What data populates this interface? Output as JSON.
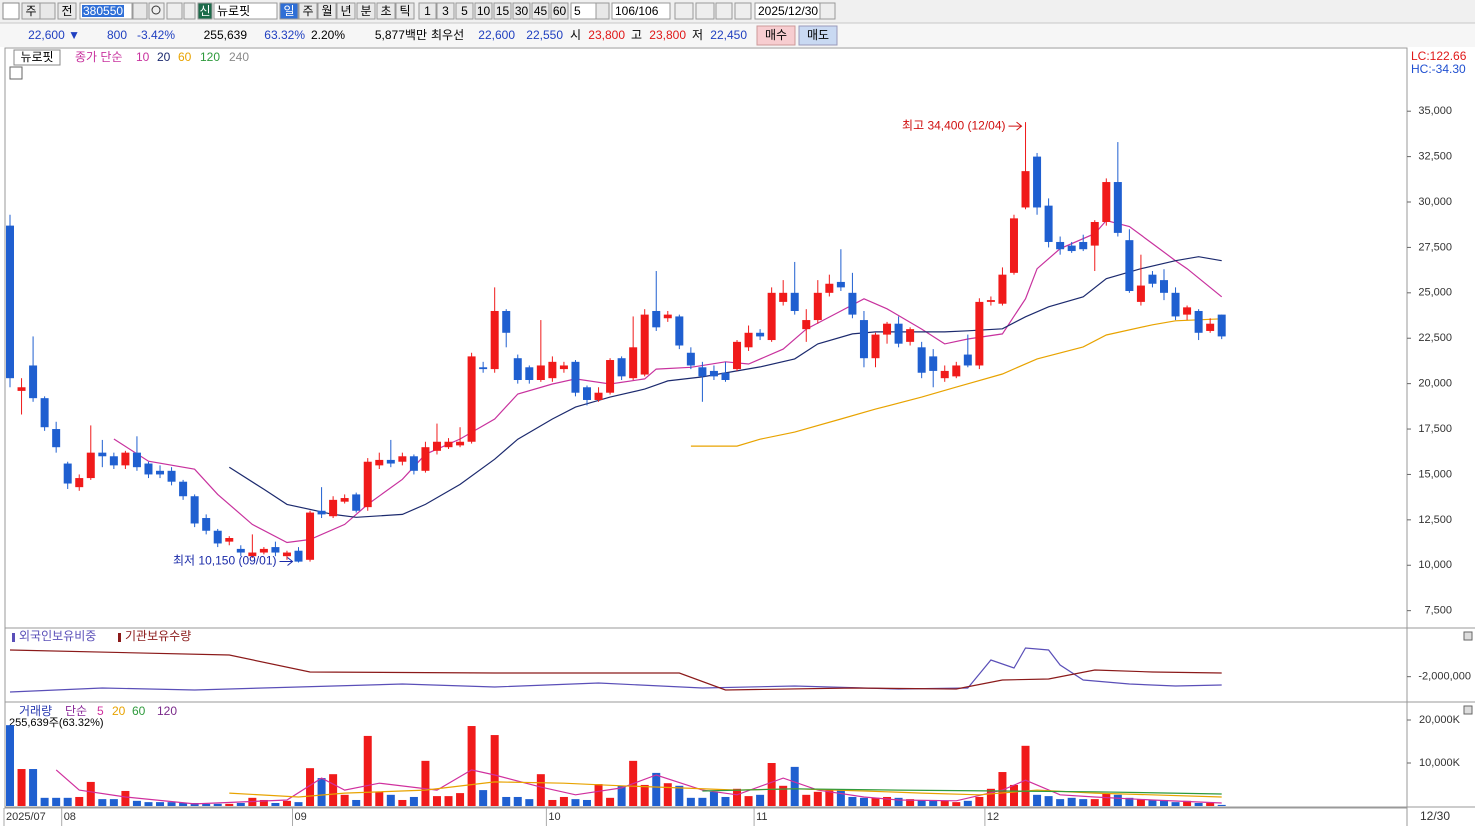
{
  "toolbar": {
    "market": "주",
    "prefix": "전",
    "code": "380550",
    "badge": "신",
    "name": "뉴로핏",
    "periods": [
      "일",
      "주",
      "월",
      "년",
      "분",
      "초",
      "틱"
    ],
    "intervals": [
      "1",
      "3",
      "5",
      "10",
      "15",
      "30",
      "45",
      "60"
    ],
    "interval_input": "5",
    "count": "106/106",
    "date": "2025/12/30"
  },
  "quote": {
    "price": "22,600 ▼",
    "change": "800",
    "change_rate": "-3.42%",
    "volume": "255,639",
    "volume_ratio": "63.32%",
    "turnover_rate": "2.20%",
    "amount": "5,877백만",
    "best_label": "최우선",
    "best_ask": "22,600",
    "best_bid": "22,550",
    "open_label": "시",
    "open": "23,800",
    "high_label": "고",
    "high": "23,800",
    "low_label": "저",
    "low": "22,450",
    "buy": "매수",
    "sell": "매도"
  },
  "chart_data": [
    {
      "type": "candlestick",
      "title": "뉴로핏",
      "ma_label": "종가 단순",
      "lc_label": "LC:122.66",
      "hc_label": "HC:-34.30",
      "high_label": "최고 34,400 (12/04)",
      "low_label": "최저 10,150 (09/01)",
      "up_color": "#f01a1a",
      "down_color": "#1f5fd0",
      "open": [
        28700,
        19600,
        21000,
        19200,
        17500,
        15600,
        14300,
        14800,
        16200,
        16000,
        15500,
        16200,
        15600,
        15200,
        15200,
        14600,
        13800,
        12600,
        11900,
        11300,
        10900,
        10500,
        10700,
        11000,
        10500,
        10800,
        10300,
        13000,
        12700,
        13500,
        13900,
        13200,
        15500,
        15800,
        15700,
        16000,
        15200,
        16300,
        16500,
        16600,
        16800,
        20900,
        20800,
        24000,
        21400,
        20900,
        20200,
        20300,
        20800,
        21200,
        19800,
        19100,
        19500,
        21400,
        20300,
        20500,
        24000,
        23600,
        23700,
        21700,
        20900,
        20700,
        20600,
        20800,
        22000,
        22800,
        22400,
        24500,
        25000,
        23000,
        23500,
        25000,
        25600,
        25000,
        23500,
        21400,
        22700,
        23300,
        22300,
        22000,
        21500,
        20300,
        20400,
        21600,
        21000,
        24500,
        24400,
        26100,
        29700,
        32500,
        29800,
        27800,
        27600,
        27800,
        27600,
        28900,
        31100,
        27900,
        24500,
        26000,
        25700,
        25000,
        23800,
        24000,
        22900,
        23800
      ],
      "high": [
        29300,
        20300,
        22600,
        19300,
        17900,
        15700,
        15000,
        17700,
        16900,
        16200,
        16300,
        17100,
        15700,
        15500,
        15400,
        14700,
        13900,
        12800,
        12000,
        11600,
        11100,
        11700,
        11000,
        11300,
        10800,
        11000,
        13000,
        14300,
        13800,
        13900,
        14000,
        15900,
        16200,
        16900,
        16200,
        16100,
        16800,
        17800,
        17000,
        17600,
        21700,
        21200,
        25300,
        24100,
        21600,
        21000,
        23500,
        21500,
        21200,
        21300,
        19900,
        19800,
        21400,
        21500,
        23700,
        24100,
        26200,
        24000,
        23800,
        22000,
        21200,
        21000,
        21200,
        22400,
        23200,
        23000,
        25300,
        25700,
        26700,
        24100,
        25700,
        26000,
        27400,
        26100,
        24000,
        22800,
        23400,
        23700,
        23100,
        22300,
        21900,
        21000,
        21200,
        22700,
        24700,
        24800,
        26400,
        29300,
        34400,
        32700,
        30200,
        28100,
        27800,
        28200,
        29000,
        31300,
        33300,
        28500,
        27100,
        26200,
        26300,
        25300,
        24300,
        24100,
        23600,
        23800
      ],
      "low": [
        19800,
        18300,
        19000,
        17400,
        16200,
        14200,
        14100,
        14700,
        15400,
        15300,
        15300,
        15200,
        14800,
        14800,
        14400,
        13600,
        12100,
        11700,
        11000,
        11100,
        10500,
        10400,
        10600,
        10500,
        10300,
        10150,
        10200,
        12600,
        12600,
        13400,
        12900,
        13000,
        15300,
        15400,
        15500,
        15000,
        15100,
        16100,
        16400,
        16500,
        16700,
        20600,
        20600,
        22000,
        20000,
        20000,
        20100,
        20100,
        20600,
        19300,
        18800,
        19000,
        19400,
        20200,
        20200,
        20400,
        22900,
        23400,
        21900,
        20800,
        19000,
        20200,
        20100,
        20700,
        21800,
        22400,
        22300,
        24300,
        23800,
        22300,
        23300,
        24800,
        25100,
        23600,
        20900,
        20900,
        22200,
        22000,
        22100,
        20300,
        19800,
        20100,
        20300,
        20900,
        20800,
        24300,
        24300,
        26000,
        29600,
        29300,
        27500,
        27100,
        27200,
        27300,
        26200,
        28700,
        28100,
        25000,
        24300,
        25300,
        24600,
        23500,
        23500,
        22400,
        22800,
        22450
      ],
      "close": [
        20300,
        19800,
        19200,
        17600,
        16500,
        14500,
        14800,
        16200,
        16000,
        15500,
        16200,
        15400,
        15000,
        15000,
        14600,
        13800,
        12300,
        11900,
        11200,
        11500,
        10700,
        10700,
        10900,
        10700,
        10700,
        10200,
        12900,
        12800,
        13600,
        13700,
        13000,
        15700,
        15800,
        15600,
        16000,
        15200,
        16500,
        16800,
        16800,
        16800,
        21500,
        20800,
        24000,
        22800,
        20200,
        20200,
        21000,
        21200,
        21000,
        19500,
        19100,
        19500,
        21300,
        20400,
        22000,
        23800,
        23100,
        23800,
        22100,
        21000,
        20400,
        20400,
        20200,
        22300,
        22800,
        22600,
        25000,
        25000,
        24000,
        23500,
        25000,
        25500,
        25300,
        23800,
        21400,
        22700,
        23300,
        22200,
        23000,
        20600,
        20700,
        20700,
        21000,
        21000,
        24500,
        24600,
        26000,
        29100,
        31700,
        29700,
        27800,
        27400,
        27300,
        27400,
        28900,
        31100,
        28300,
        25100,
        25400,
        25500,
        25000,
        23700,
        24200,
        22800,
        23300,
        22600
      ],
      "series": [
        {
          "name": "10",
          "color": "#c8329e",
          "x": [
            9,
            12,
            16,
            18,
            21,
            24,
            26,
            29,
            31,
            34,
            36,
            39,
            42,
            44,
            47,
            49,
            52,
            55,
            56,
            59,
            62,
            64,
            67,
            69,
            72,
            74,
            76,
            79,
            81,
            83,
            86,
            88,
            89,
            91,
            94,
            95,
            97,
            99,
            101,
            102,
            105
          ],
          "values": [
            16950,
            15730,
            15290,
            13900,
            12250,
            11250,
            11420,
            12250,
            13350,
            14730,
            16110,
            16950,
            18050,
            19430,
            19980,
            20260,
            19980,
            20260,
            20800,
            20900,
            21200,
            21080,
            21900,
            23000,
            24000,
            24670,
            24120,
            23000,
            22190,
            22460,
            22740,
            24670,
            26330,
            27430,
            28260,
            28980,
            28650,
            27710,
            26770,
            26330,
            24780
          ]
        },
        {
          "name": "20",
          "color": "#1c2a6e",
          "x": [
            19,
            22,
            24,
            28,
            30,
            34,
            36,
            39,
            42,
            44,
            47,
            49,
            52,
            55,
            57,
            60,
            62,
            65,
            68,
            70,
            73,
            75,
            78,
            81,
            83,
            86,
            88,
            90,
            93,
            95,
            98,
            101,
            103,
            105
          ],
          "values": [
            15400,
            14180,
            13350,
            12800,
            12640,
            12800,
            13350,
            14450,
            15840,
            16940,
            18050,
            18710,
            19260,
            19700,
            20150,
            20370,
            20590,
            20920,
            21360,
            22190,
            22740,
            22850,
            22850,
            22850,
            22910,
            23020,
            23680,
            24230,
            24780,
            25780,
            26330,
            26770,
            26990,
            26770
          ]
        },
        {
          "name": "60",
          "color": "#e8a300",
          "x": [
            59,
            63,
            65,
            68,
            72,
            75,
            79,
            82,
            86,
            89,
            93,
            95,
            99,
            101,
            105
          ],
          "values": [
            16560,
            16560,
            16940,
            17330,
            18050,
            18600,
            19260,
            19810,
            20530,
            21360,
            22020,
            22680,
            23240,
            23460,
            23570
          ]
        },
        {
          "name": "120",
          "color": "#2e9a3c",
          "x": [],
          "values": []
        },
        {
          "name": "240",
          "color": "#8a8a8a",
          "x": [],
          "values": []
        }
      ],
      "ylim": [
        6600,
        38480
      ],
      "yticks": [
        {
          "value": 7500,
          "label": "7,500"
        },
        {
          "value": 10000,
          "label": "10,000"
        },
        {
          "value": 12500,
          "label": "12,500"
        },
        {
          "value": 15000,
          "label": "15,000"
        },
        {
          "value": 17500,
          "label": "17,500"
        },
        {
          "value": 20000,
          "label": "20,000"
        },
        {
          "value": 22500,
          "label": "22,500"
        },
        {
          "value": 25000,
          "label": "25,000"
        },
        {
          "value": 27500,
          "label": "27,500"
        },
        {
          "value": 30000,
          "label": "30,000"
        },
        {
          "value": 32500,
          "label": "32,500"
        },
        {
          "value": 35000,
          "label": "35,000"
        }
      ],
      "grid": false
    },
    {
      "type": "line",
      "series": [
        {
          "name": "외국인보유비중",
          "color": "#5a4fb8",
          "x": [
            0,
            8,
            16,
            25,
            34,
            42,
            51,
            60,
            68,
            77,
            83,
            85,
            87,
            88,
            90,
            91,
            93,
            97,
            101,
            105
          ],
          "values": [
            -2986000,
            -2729000,
            -2857000,
            -2664000,
            -2471000,
            -2664000,
            -2407000,
            -2729000,
            -2600000,
            -2793000,
            -2729000,
            -929000,
            -1443000,
            -157000,
            -286000,
            -1250000,
            -2214000,
            -2471000,
            -2600000,
            -2536000
          ]
        },
        {
          "name": "기관보유수량",
          "color": "#8b1a1a",
          "x": [
            0,
            19,
            26,
            42,
            58,
            62,
            73,
            82,
            86,
            90,
            94,
            99,
            105
          ],
          "values": [
            -286000,
            -607000,
            -1700000,
            -1764000,
            -1764000,
            -2857000,
            -2729000,
            -2793000,
            -2214000,
            -2150000,
            -1571000,
            -1700000,
            -1764000
          ]
        }
      ],
      "ylim": [
        -3500000,
        1000000
      ],
      "yticks": [
        {
          "value": -2000000,
          "label": "-2,000,000"
        }
      ]
    },
    {
      "type": "bar",
      "title": "거래량",
      "ma_label": "단순",
      "last_label": "255,639주(63.32%)",
      "categories": [
        "2025/07",
        null,
        null,
        null,
        null,
        "08",
        null,
        null,
        null,
        null,
        null,
        null,
        null,
        null,
        null,
        null,
        null,
        null,
        null,
        null,
        null,
        null,
        null,
        null,
        null,
        "09",
        null,
        null,
        null,
        null,
        null,
        null,
        null,
        null,
        null,
        null,
        null,
        null,
        null,
        null,
        null,
        null,
        null,
        null,
        null,
        null,
        null,
        "10",
        null,
        null,
        null,
        null,
        null,
        null,
        null,
        null,
        null,
        null,
        null,
        null,
        null,
        null,
        null,
        null,
        null,
        "11",
        null,
        null,
        null,
        null,
        null,
        null,
        null,
        null,
        null,
        null,
        null,
        null,
        null,
        null,
        null,
        null,
        null,
        null,
        null,
        "12",
        null,
        null,
        null,
        null,
        null,
        null,
        null,
        null,
        null,
        null,
        null,
        null,
        null,
        null,
        null,
        null,
        null,
        null,
        null,
        null
      ],
      "end_label": "12/30",
      "values": [
        18800,
        8600,
        8600,
        1900,
        1900,
        1900,
        2100,
        5600,
        1600,
        1600,
        3500,
        1200,
        900,
        900,
        900,
        700,
        700,
        500,
        500,
        500,
        700,
        1900,
        1400,
        700,
        1200,
        900,
        8800,
        6500,
        7400,
        2600,
        1400,
        16300,
        3300,
        2600,
        1400,
        2100,
        10500,
        2300,
        2300,
        3000,
        18600,
        3700,
        16500,
        2100,
        2100,
        1600,
        7400,
        1400,
        2100,
        1600,
        1400,
        5100,
        1900,
        4700,
        10500,
        4900,
        7700,
        5300,
        4700,
        1900,
        1900,
        3300,
        2100,
        4000,
        2300,
        2600,
        10000,
        4700,
        9100,
        2600,
        3300,
        3700,
        3700,
        2100,
        1900,
        1900,
        2100,
        1900,
        1600,
        1400,
        1400,
        1200,
        900,
        1200,
        2100,
        4000,
        7900,
        4900,
        14000,
        2600,
        2300,
        1600,
        1900,
        1600,
        1600,
        2800,
        2600,
        1900,
        1600,
        1400,
        1400,
        900,
        1200,
        700,
        700,
        255.639
      ],
      "series": [
        {
          "name": "5",
          "color": "#d0309e",
          "x": [
            4,
            6,
            10,
            16,
            24,
            27,
            29,
            32,
            37,
            40,
            42,
            46,
            49,
            53,
            56,
            60,
            63,
            67,
            70,
            74,
            77,
            82,
            86,
            88,
            91,
            94,
            99,
            105
          ],
          "values": [
            8400,
            3700,
            2100,
            500,
            1400,
            6500,
            3700,
            5300,
            3700,
            8400,
            7200,
            4400,
            2600,
            4200,
            7200,
            3700,
            2600,
            6500,
            3700,
            2100,
            1400,
            1200,
            3700,
            6000,
            2600,
            2100,
            1400,
            700
          ]
        },
        {
          "name": "20",
          "color": "#e8a300",
          "x": [
            19,
            25,
            29,
            36,
            42,
            48,
            53,
            58,
            63,
            68,
            74,
            79,
            84,
            89,
            94,
            105
          ],
          "values": [
            3000,
            2100,
            3000,
            3700,
            5600,
            5300,
            4700,
            4200,
            3700,
            4000,
            3500,
            3000,
            2600,
            3700,
            3000,
            2100
          ]
        },
        {
          "name": "60",
          "color": "#2e9a3c",
          "x": [
            60,
            68,
            77,
            86,
            94,
            105
          ],
          "values": [
            3500,
            4000,
            3700,
            3500,
            3300,
            2800
          ]
        },
        {
          "name": "120",
          "color": "#7a2a8a",
          "x": [],
          "values": []
        }
      ],
      "ylim": [
        0,
        23260
      ],
      "yticks": [
        {
          "value": 10000,
          "label": "10,000K"
        },
        {
          "value": 20000,
          "label": "20,000K"
        }
      ]
    }
  ]
}
